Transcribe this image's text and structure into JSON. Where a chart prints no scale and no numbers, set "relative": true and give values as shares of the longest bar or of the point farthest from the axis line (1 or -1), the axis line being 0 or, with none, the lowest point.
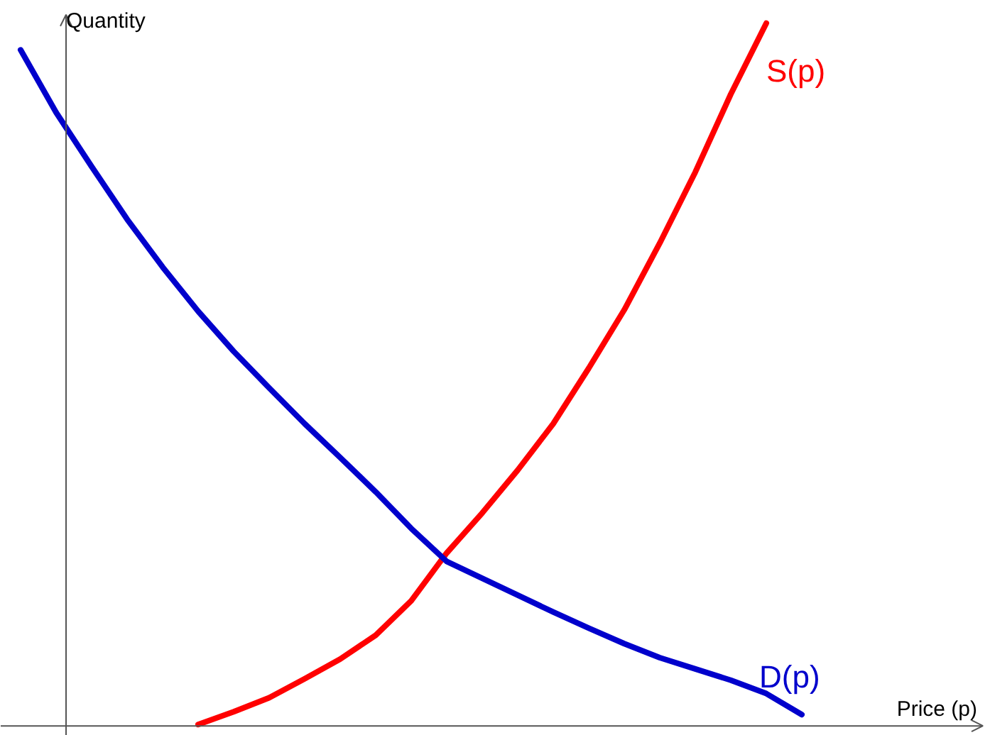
{
  "chart_data": {
    "type": "line",
    "relative": true,
    "xlabel": "Price (p)",
    "ylabel": "Quantity",
    "legend": false,
    "categories": [
      null,
      null,
      null,
      null,
      null,
      null,
      null,
      null,
      null,
      null,
      null,
      null,
      null,
      null,
      null,
      null,
      null,
      null,
      null,
      null,
      null,
      null,
      null,
      null,
      null,
      null,
      null,
      null
    ],
    "series": [
      {
        "name": "S(p)",
        "color": "#ff0000",
        "values": [
          null,
          null,
          null,
          null,
          null,
          0.002,
          0.02,
          0.04,
          0.067,
          0.095,
          0.129,
          0.178,
          0.246,
          0.303,
          0.364,
          0.43,
          0.509,
          0.592,
          0.687,
          0.788,
          0.899,
          1.0,
          null,
          null,
          null,
          null,
          null,
          null
        ]
      },
      {
        "name": "D(p)",
        "color": "#0000cc",
        "values": [
          0.962,
          0.873,
          0.796,
          0.721,
          0.653,
          0.59,
          0.533,
          0.481,
          0.43,
          0.382,
          0.333,
          0.281,
          0.234,
          0.21,
          0.186,
          0.162,
          0.139,
          0.117,
          0.097,
          0.081,
          0.065,
          0.046,
          0.016,
          null,
          null,
          null,
          null,
          null
        ]
      }
    ]
  }
}
